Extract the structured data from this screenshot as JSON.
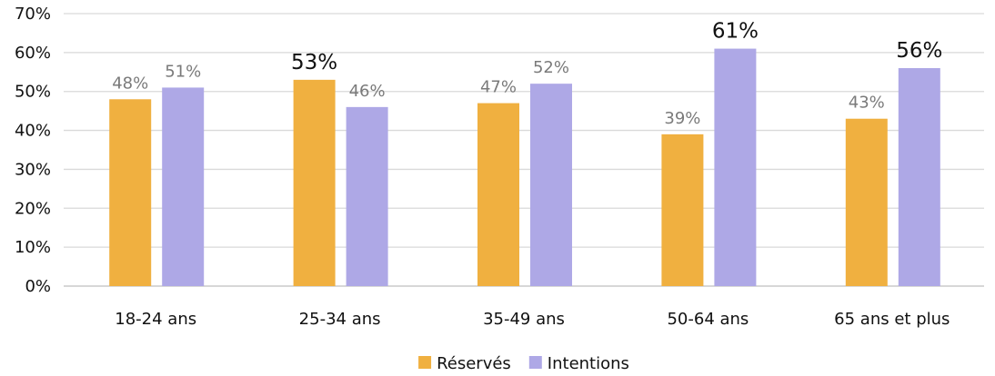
{
  "chart_data": {
    "type": "bar",
    "title": "",
    "xlabel": "",
    "ylabel": "",
    "ylim": [
      0,
      70
    ],
    "yticks": [
      "0%",
      "10%",
      "20%",
      "30%",
      "40%",
      "50%",
      "60%",
      "70%"
    ],
    "grid": true,
    "legend_position": "bottom",
    "categories": [
      "18-24 ans",
      "25-34 ans",
      "35-49 ans",
      "50-64 ans",
      "65 ans et plus"
    ],
    "series": [
      {
        "name": "Réservés",
        "color": "#F0B040",
        "values": [
          48,
          53,
          47,
          39,
          43
        ],
        "labels": [
          "48%",
          "53%",
          "47%",
          "39%",
          "43%"
        ],
        "highlight": [
          false,
          true,
          false,
          false,
          false
        ]
      },
      {
        "name": "Intentions",
        "color": "#AEA8E6",
        "values": [
          51,
          46,
          52,
          61,
          56
        ],
        "labels": [
          "51%",
          "46%",
          "52%",
          "61%",
          "56%"
        ],
        "highlight": [
          false,
          false,
          false,
          true,
          true
        ]
      }
    ]
  }
}
